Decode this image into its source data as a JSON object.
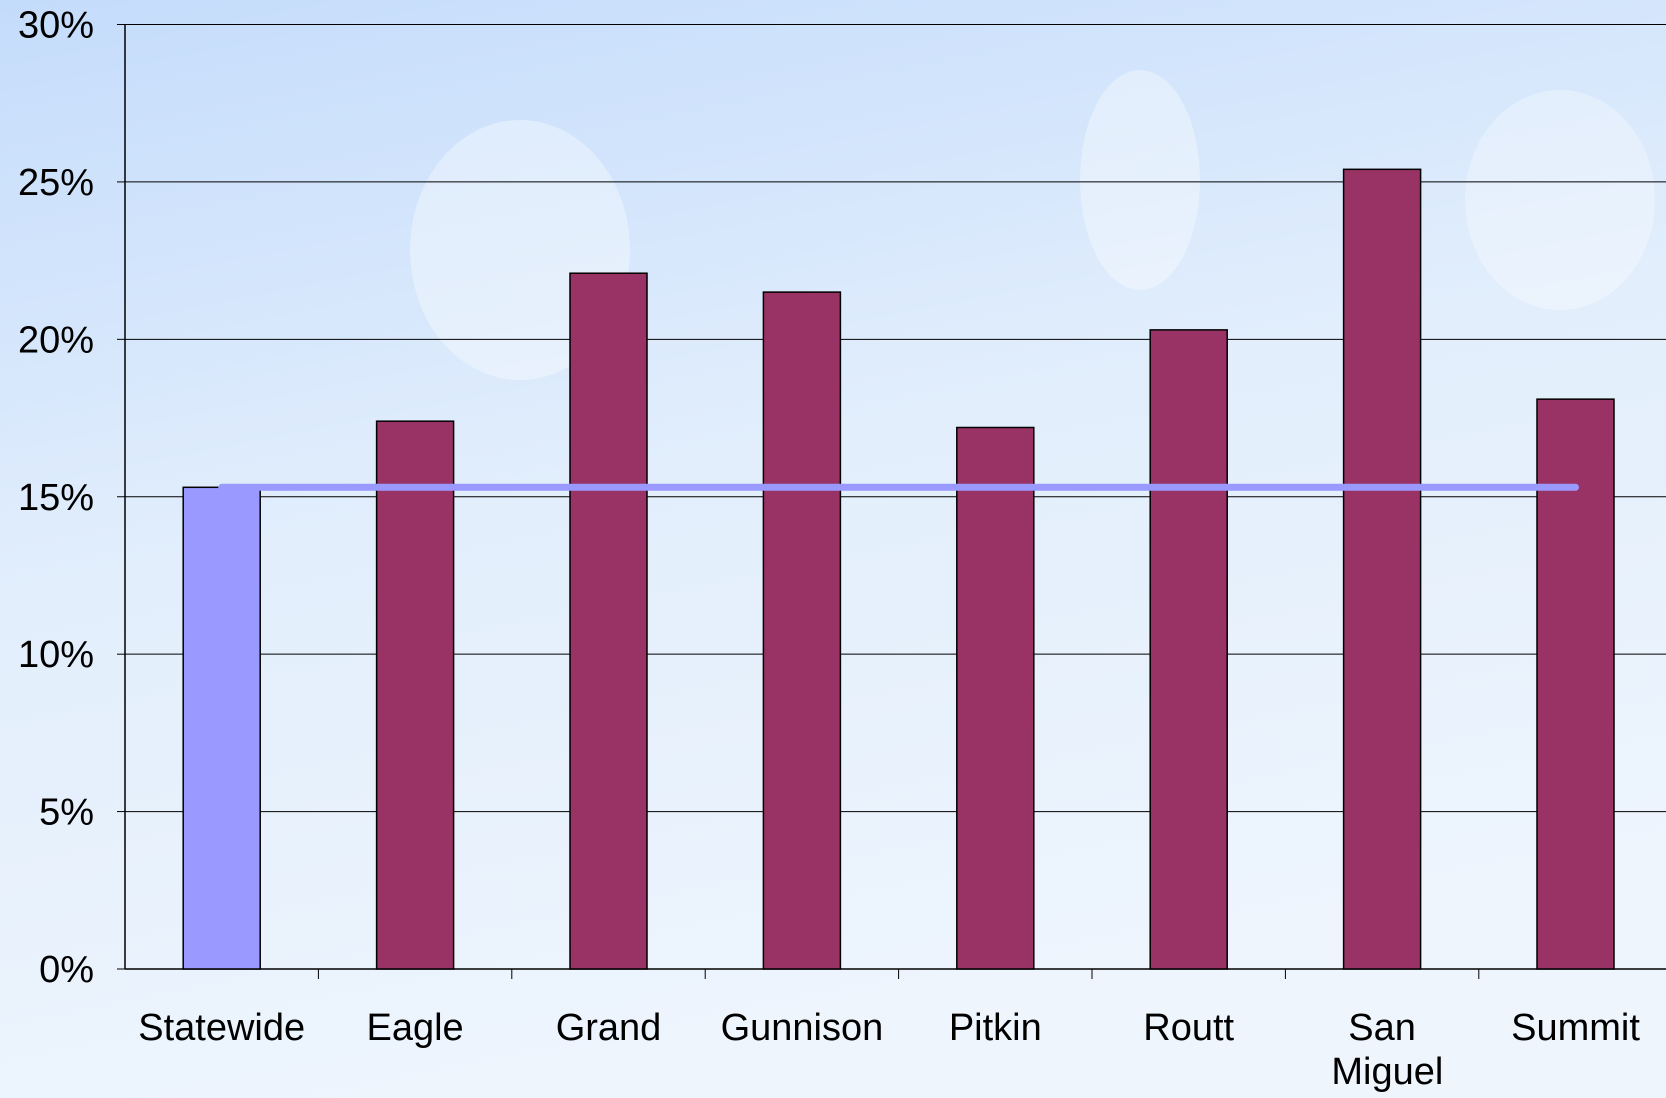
{
  "chart_data": {
    "type": "bar",
    "categories": [
      "Statewide",
      "Eagle",
      "Grand",
      "Gunnison",
      "Pitkin",
      "Routt",
      "San Miguel",
      "Summit"
    ],
    "values": [
      15.3,
      17.4,
      22.1,
      21.5,
      17.2,
      20.3,
      25.4,
      18.1
    ],
    "colors": [
      "#9999ff",
      "#993366",
      "#993366",
      "#993366",
      "#993366",
      "#993366",
      "#993366",
      "#993366"
    ],
    "reference_line_color": "#9999ff",
    "ylim": [
      0,
      30
    ],
    "yticks": [
      {
        "value": 0,
        "label": "0%"
      },
      {
        "value": 5,
        "label": "5%"
      },
      {
        "value": 10,
        "label": "10%"
      },
      {
        "value": 15,
        "label": "15%"
      },
      {
        "value": 20,
        "label": "20%"
      },
      {
        "value": 25,
        "label": "25%"
      },
      {
        "value": 30,
        "label": "30%"
      }
    ],
    "grid": true
  }
}
